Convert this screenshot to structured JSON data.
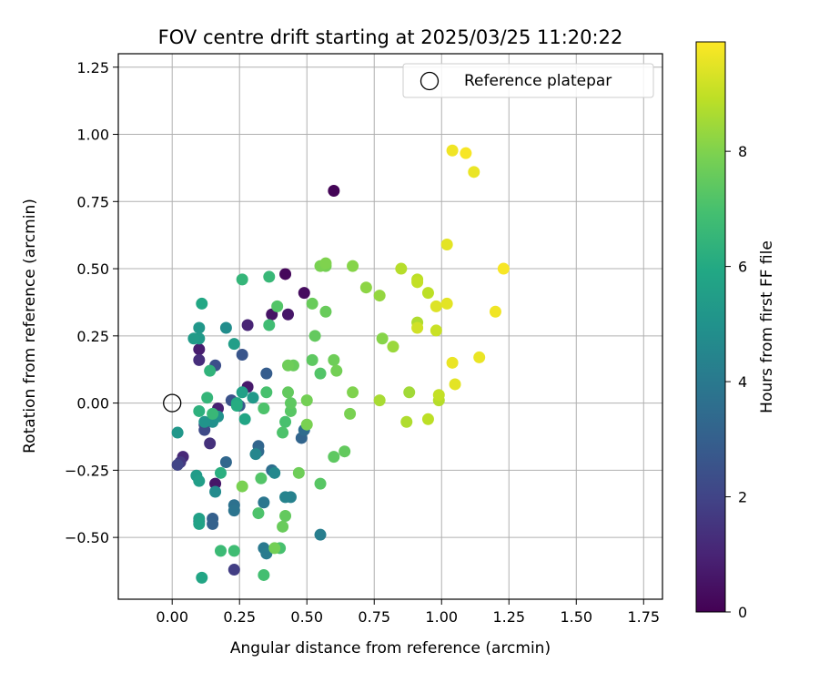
{
  "chart_data": {
    "type": "scatter",
    "title": "FOV centre drift starting at 2025/03/25 11:20:22",
    "xlabel": "Angular distance from reference (arcmin)",
    "ylabel": "Rotation from reference (arcmin)",
    "xlim": [
      -0.2,
      1.82
    ],
    "ylim": [
      -0.73,
      1.3
    ],
    "xticks": [
      0.0,
      0.25,
      0.5,
      0.75,
      1.0,
      1.25,
      1.5,
      1.75
    ],
    "xtick_labels": [
      "0.00",
      "0.25",
      "0.50",
      "0.75",
      "1.00",
      "1.25",
      "1.50",
      "1.75"
    ],
    "yticks": [
      -0.5,
      -0.25,
      0.0,
      0.25,
      0.5,
      0.75,
      1.0,
      1.25
    ],
    "ytick_labels": [
      "−0.50",
      "−0.25",
      "0.00",
      "0.25",
      "0.50",
      "0.75",
      "1.00",
      "1.25"
    ],
    "grid": true,
    "legend": {
      "placement": "upper-right",
      "entries": [
        {
          "label": "Reference platepar",
          "marker": "open-circle"
        }
      ]
    },
    "reference_point": {
      "x": 0.0,
      "y": 0.0
    },
    "colorbar": {
      "label": "Hours from first FF file",
      "colormap": "viridis",
      "range": [
        0,
        9.9
      ],
      "ticks": [
        0,
        2,
        4,
        6,
        8
      ],
      "tick_labels": [
        "0",
        "2",
        "4",
        "6",
        "8"
      ]
    },
    "series": [
      {
        "points": [
          {
            "x": 0.6,
            "y": 0.79,
            "c": 0.1
          },
          {
            "x": 0.42,
            "y": 0.48,
            "c": 0.2
          },
          {
            "x": 0.49,
            "y": 0.41,
            "c": 0.3
          },
          {
            "x": 0.37,
            "y": 0.33,
            "c": 0.5
          },
          {
            "x": 0.43,
            "y": 0.33,
            "c": 0.6
          },
          {
            "x": 0.28,
            "y": 0.29,
            "c": 1.0
          },
          {
            "x": 0.1,
            "y": 0.2,
            "c": 0.8
          },
          {
            "x": 0.1,
            "y": 0.16,
            "c": 1.3
          },
          {
            "x": 0.28,
            "y": 0.06,
            "c": 0.7
          },
          {
            "x": 0.17,
            "y": -0.02,
            "c": 0.9
          },
          {
            "x": 0.04,
            "y": -0.2,
            "c": 1.1
          },
          {
            "x": 0.03,
            "y": -0.22,
            "c": 1.6
          },
          {
            "x": 0.02,
            "y": -0.23,
            "c": 2.0
          },
          {
            "x": 0.16,
            "y": -0.3,
            "c": 0.6
          },
          {
            "x": 0.14,
            "y": -0.15,
            "c": 1.4
          },
          {
            "x": 0.23,
            "y": -0.62,
            "c": 1.8
          },
          {
            "x": 0.12,
            "y": -0.08,
            "c": 1.9
          },
          {
            "x": 0.12,
            "y": -0.1,
            "c": 2.2
          },
          {
            "x": 0.16,
            "y": 0.14,
            "c": 2.4
          },
          {
            "x": 0.26,
            "y": 0.18,
            "c": 2.6
          },
          {
            "x": 0.22,
            "y": 0.01,
            "c": 2.5
          },
          {
            "x": 0.25,
            "y": -0.01,
            "c": 2.7
          },
          {
            "x": 0.35,
            "y": 0.11,
            "c": 2.9
          },
          {
            "x": 0.1,
            "y": -0.44,
            "c": 2.8
          },
          {
            "x": 0.15,
            "y": -0.43,
            "c": 3.0
          },
          {
            "x": 0.15,
            "y": -0.45,
            "c": 3.1
          },
          {
            "x": 0.2,
            "y": -0.22,
            "c": 3.3
          },
          {
            "x": 0.32,
            "y": -0.16,
            "c": 3.2
          },
          {
            "x": 0.32,
            "y": -0.18,
            "c": 3.4
          },
          {
            "x": 0.48,
            "y": -0.13,
            "c": 3.2
          },
          {
            "x": 0.49,
            "y": -0.1,
            "c": 3.5
          },
          {
            "x": 0.37,
            "y": -0.25,
            "c": 3.6
          },
          {
            "x": 0.23,
            "y": -0.38,
            "c": 3.7
          },
          {
            "x": 0.23,
            "y": -0.4,
            "c": 3.8
          },
          {
            "x": 0.34,
            "y": -0.37,
            "c": 3.9
          },
          {
            "x": 0.34,
            "y": -0.54,
            "c": 4.0
          },
          {
            "x": 0.35,
            "y": -0.56,
            "c": 4.1
          },
          {
            "x": 0.55,
            "y": -0.49,
            "c": 4.2
          },
          {
            "x": 0.44,
            "y": -0.35,
            "c": 4.3
          },
          {
            "x": 0.42,
            "y": -0.35,
            "c": 4.4
          },
          {
            "x": 0.31,
            "y": -0.19,
            "c": 4.5
          },
          {
            "x": 0.38,
            "y": -0.26,
            "c": 4.6
          },
          {
            "x": 0.16,
            "y": -0.33,
            "c": 4.7
          },
          {
            "x": 0.2,
            "y": 0.28,
            "c": 4.8
          },
          {
            "x": 0.15,
            "y": -0.07,
            "c": 4.9
          },
          {
            "x": 0.17,
            "y": -0.05,
            "c": 5.0
          },
          {
            "x": 0.12,
            "y": -0.07,
            "c": 5.1
          },
          {
            "x": 0.1,
            "y": 0.28,
            "c": 5.2
          },
          {
            "x": 0.1,
            "y": 0.24,
            "c": 5.3
          },
          {
            "x": 0.08,
            "y": 0.24,
            "c": 5.4
          },
          {
            "x": 0.23,
            "y": 0.22,
            "c": 5.5
          },
          {
            "x": 0.3,
            "y": 0.02,
            "c": 5.3
          },
          {
            "x": 0.26,
            "y": 0.04,
            "c": 5.6
          },
          {
            "x": 0.27,
            "y": -0.06,
            "c": 5.8
          },
          {
            "x": 0.02,
            "y": -0.11,
            "c": 5.2
          },
          {
            "x": 0.09,
            "y": -0.27,
            "c": 5.4
          },
          {
            "x": 0.1,
            "y": -0.29,
            "c": 5.5
          },
          {
            "x": 0.1,
            "y": -0.43,
            "c": 5.6
          },
          {
            "x": 0.1,
            "y": -0.45,
            "c": 5.7
          },
          {
            "x": 0.11,
            "y": -0.65,
            "c": 5.8
          },
          {
            "x": 0.11,
            "y": 0.37,
            "c": 5.9
          },
          {
            "x": 0.24,
            "y": 0.0,
            "c": 6.0
          },
          {
            "x": 0.24,
            "y": -0.01,
            "c": 6.1
          },
          {
            "x": 0.18,
            "y": -0.26,
            "c": 6.2
          },
          {
            "x": 0.1,
            "y": -0.03,
            "c": 6.3
          },
          {
            "x": 0.14,
            "y": 0.12,
            "c": 6.4
          },
          {
            "x": 0.13,
            "y": 0.02,
            "c": 6.5
          },
          {
            "x": 0.15,
            "y": -0.04,
            "c": 6.6
          },
          {
            "x": 0.18,
            "y": -0.55,
            "c": 6.7
          },
          {
            "x": 0.23,
            "y": -0.55,
            "c": 6.8
          },
          {
            "x": 0.34,
            "y": -0.64,
            "c": 6.9
          },
          {
            "x": 0.4,
            "y": -0.54,
            "c": 7.0
          },
          {
            "x": 0.32,
            "y": -0.41,
            "c": 7.1
          },
          {
            "x": 0.33,
            "y": -0.28,
            "c": 7.2
          },
          {
            "x": 0.26,
            "y": 0.46,
            "c": 6.5
          },
          {
            "x": 0.36,
            "y": 0.47,
            "c": 6.6
          },
          {
            "x": 0.36,
            "y": 0.29,
            "c": 6.8
          },
          {
            "x": 0.39,
            "y": 0.36,
            "c": 7.2
          },
          {
            "x": 0.35,
            "y": 0.04,
            "c": 7.0
          },
          {
            "x": 0.34,
            "y": -0.02,
            "c": 7.1
          },
          {
            "x": 0.42,
            "y": -0.07,
            "c": 7.0
          },
          {
            "x": 0.41,
            "y": -0.11,
            "c": 7.1
          },
          {
            "x": 0.44,
            "y": -0.03,
            "c": 7.3
          },
          {
            "x": 0.44,
            "y": 0.0,
            "c": 7.4
          },
          {
            "x": 0.43,
            "y": 0.04,
            "c": 7.5
          },
          {
            "x": 0.45,
            "y": 0.14,
            "c": 7.6
          },
          {
            "x": 0.43,
            "y": 0.14,
            "c": 7.7
          },
          {
            "x": 0.5,
            "y": 0.01,
            "c": 7.8
          },
          {
            "x": 0.5,
            "y": -0.08,
            "c": 7.9
          },
          {
            "x": 0.47,
            "y": -0.26,
            "c": 7.7
          },
          {
            "x": 0.42,
            "y": -0.42,
            "c": 7.5
          },
          {
            "x": 0.41,
            "y": -0.46,
            "c": 7.6
          },
          {
            "x": 0.38,
            "y": -0.54,
            "c": 7.8
          },
          {
            "x": 0.26,
            "y": -0.31,
            "c": 7.9
          },
          {
            "x": 0.52,
            "y": 0.16,
            "c": 7.4
          },
          {
            "x": 0.53,
            "y": 0.25,
            "c": 7.5
          },
          {
            "x": 0.52,
            "y": 0.37,
            "c": 7.6
          },
          {
            "x": 0.55,
            "y": 0.11,
            "c": 7.2
          },
          {
            "x": 0.55,
            "y": -0.3,
            "c": 7.3
          },
          {
            "x": 0.6,
            "y": -0.2,
            "c": 7.4
          },
          {
            "x": 0.64,
            "y": -0.18,
            "c": 7.5
          },
          {
            "x": 0.57,
            "y": 0.51,
            "c": 7.8
          },
          {
            "x": 0.55,
            "y": 0.51,
            "c": 7.9
          },
          {
            "x": 0.57,
            "y": 0.52,
            "c": 8.0
          },
          {
            "x": 0.57,
            "y": 0.34,
            "c": 7.6
          },
          {
            "x": 0.6,
            "y": 0.16,
            "c": 7.7
          },
          {
            "x": 0.61,
            "y": 0.12,
            "c": 7.8
          },
          {
            "x": 0.66,
            "y": -0.04,
            "c": 7.9
          },
          {
            "x": 0.67,
            "y": 0.04,
            "c": 8.0
          },
          {
            "x": 0.67,
            "y": 0.51,
            "c": 8.1
          },
          {
            "x": 0.72,
            "y": 0.43,
            "c": 8.2
          },
          {
            "x": 0.77,
            "y": 0.4,
            "c": 8.3
          },
          {
            "x": 0.78,
            "y": 0.24,
            "c": 8.1
          },
          {
            "x": 0.82,
            "y": 0.21,
            "c": 8.4
          },
          {
            "x": 0.77,
            "y": 0.01,
            "c": 8.6
          },
          {
            "x": 0.87,
            "y": -0.07,
            "c": 8.7
          },
          {
            "x": 0.88,
            "y": 0.04,
            "c": 8.5
          },
          {
            "x": 0.85,
            "y": 0.5,
            "c": 8.8
          },
          {
            "x": 0.91,
            "y": 0.46,
            "c": 8.9
          },
          {
            "x": 0.91,
            "y": 0.45,
            "c": 9.0
          },
          {
            "x": 0.95,
            "y": 0.41,
            "c": 8.9
          },
          {
            "x": 0.91,
            "y": 0.3,
            "c": 8.7
          },
          {
            "x": 0.91,
            "y": 0.28,
            "c": 9.2
          },
          {
            "x": 0.98,
            "y": 0.27,
            "c": 9.1
          },
          {
            "x": 0.95,
            "y": -0.06,
            "c": 8.9
          },
          {
            "x": 0.99,
            "y": 0.01,
            "c": 8.8
          },
          {
            "x": 0.99,
            "y": 0.03,
            "c": 9.0
          },
          {
            "x": 0.98,
            "y": 0.36,
            "c": 9.4
          },
          {
            "x": 1.02,
            "y": 0.37,
            "c": 9.5
          },
          {
            "x": 1.04,
            "y": 0.15,
            "c": 9.6
          },
          {
            "x": 1.05,
            "y": 0.07,
            "c": 9.5
          },
          {
            "x": 1.02,
            "y": 0.59,
            "c": 9.5
          },
          {
            "x": 1.04,
            "y": 0.94,
            "c": 9.7
          },
          {
            "x": 1.09,
            "y": 0.93,
            "c": 9.8
          },
          {
            "x": 1.12,
            "y": 0.86,
            "c": 9.6
          },
          {
            "x": 1.14,
            "y": 0.17,
            "c": 9.6
          },
          {
            "x": 1.2,
            "y": 0.34,
            "c": 9.7
          },
          {
            "x": 1.23,
            "y": 0.5,
            "c": 9.8
          }
        ]
      }
    ]
  }
}
